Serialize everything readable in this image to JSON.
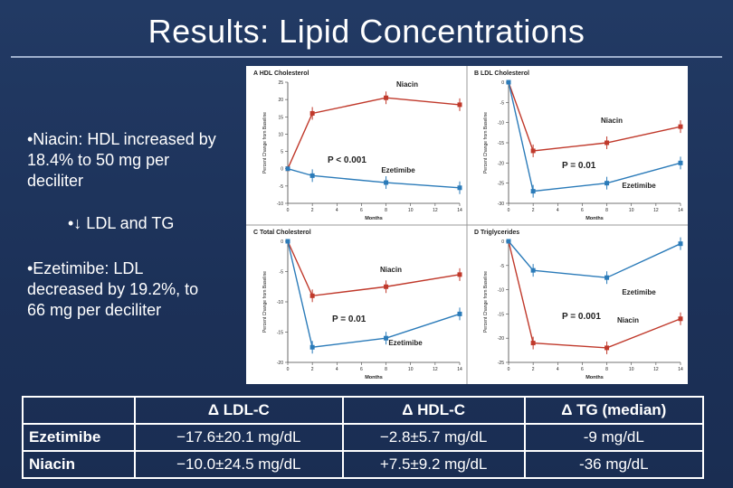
{
  "slide": {
    "title": "Results: Lipid Concentrations",
    "bullet1": "•Niacin: HDL increased by 18.4% to 50 mg per deciliter",
    "bullet1_sub": "•↓ LDL and TG",
    "bullet2": "•Ezetimibe: LDL decreased by 19.2%, to 66 mg per deciliter"
  },
  "colors": {
    "niacin": "#c0392b",
    "ezetimibe": "#2b7bb9",
    "background": "#1e335c"
  },
  "chart_data": [
    {
      "type": "line",
      "title": "A  HDL Cholesterol",
      "xlabel": "Months",
      "ylabel": "Percent Change from Baseline",
      "xlim": [
        0,
        14
      ],
      "ylim": [
        -10,
        25
      ],
      "xticks": [
        0,
        2,
        4,
        6,
        8,
        10,
        12,
        14
      ],
      "yticks": [
        -10,
        -5,
        0,
        5,
        10,
        15,
        20,
        25
      ],
      "annotation": "P < 0.001",
      "series": [
        {
          "name": "Niacin",
          "x": [
            0,
            2,
            8,
            14
          ],
          "y": [
            0,
            16,
            20.5,
            18.5
          ]
        },
        {
          "name": "Ezetimibe",
          "x": [
            0,
            2,
            8,
            14
          ],
          "y": [
            0,
            -2,
            -4,
            -5.5
          ]
        }
      ]
    },
    {
      "type": "line",
      "title": "B  LDL Cholesterol",
      "xlabel": "Months",
      "ylabel": "Percent Change from Baseline",
      "xlim": [
        0,
        14
      ],
      "ylim": [
        -30,
        0
      ],
      "xticks": [
        0,
        2,
        4,
        6,
        8,
        10,
        12,
        14
      ],
      "yticks": [
        -30,
        -25,
        -20,
        -15,
        -10,
        -5,
        0
      ],
      "annotation": "P = 0.01",
      "series": [
        {
          "name": "Niacin",
          "x": [
            0,
            2,
            8,
            14
          ],
          "y": [
            0,
            -17,
            -15,
            -11
          ]
        },
        {
          "name": "Ezetimibe",
          "x": [
            0,
            2,
            8,
            14
          ],
          "y": [
            0,
            -27,
            -25,
            -20
          ]
        }
      ]
    },
    {
      "type": "line",
      "title": "C  Total Cholesterol",
      "xlabel": "Months",
      "ylabel": "Percent Change from Baseline",
      "xlim": [
        0,
        14
      ],
      "ylim": [
        -20,
        0
      ],
      "xticks": [
        0,
        2,
        4,
        6,
        8,
        10,
        12,
        14
      ],
      "yticks": [
        -20,
        -15,
        -10,
        -5,
        0
      ],
      "annotation": "P = 0.01",
      "series": [
        {
          "name": "Niacin",
          "x": [
            0,
            2,
            8,
            14
          ],
          "y": [
            0,
            -9,
            -7.5,
            -5.5
          ]
        },
        {
          "name": "Ezetimibe",
          "x": [
            0,
            2,
            8,
            14
          ],
          "y": [
            0,
            -17.5,
            -16,
            -12
          ]
        }
      ]
    },
    {
      "type": "line",
      "title": "D  Triglycerides",
      "xlabel": "Months",
      "ylabel": "Percent Change from Baseline",
      "xlim": [
        0,
        14
      ],
      "ylim": [
        -25,
        0
      ],
      "xticks": [
        0,
        2,
        4,
        6,
        8,
        10,
        12,
        14
      ],
      "yticks": [
        -25,
        -20,
        -15,
        -10,
        -5,
        0
      ],
      "annotation": "P = 0.001",
      "series": [
        {
          "name": "Niacin",
          "x": [
            0,
            2,
            8,
            14
          ],
          "y": [
            0,
            -21,
            -22,
            -16
          ]
        },
        {
          "name": "Ezetimibe",
          "x": [
            0,
            2,
            8,
            14
          ],
          "y": [
            0,
            -6,
            -7.5,
            -0.5
          ]
        }
      ]
    }
  ],
  "table": {
    "headers": [
      "",
      "Δ LDL-C",
      "Δ HDL-C",
      "Δ TG (median)"
    ],
    "rows": [
      [
        "Ezetimibe",
        "−17.6±20.1 mg/dL",
        "−2.8±5.7 mg/dL",
        "-9 mg/dL"
      ],
      [
        "Niacin",
        "−10.0±24.5 mg/dL",
        "+7.5±9.2 mg/dL",
        "-36 mg/dL"
      ]
    ]
  }
}
